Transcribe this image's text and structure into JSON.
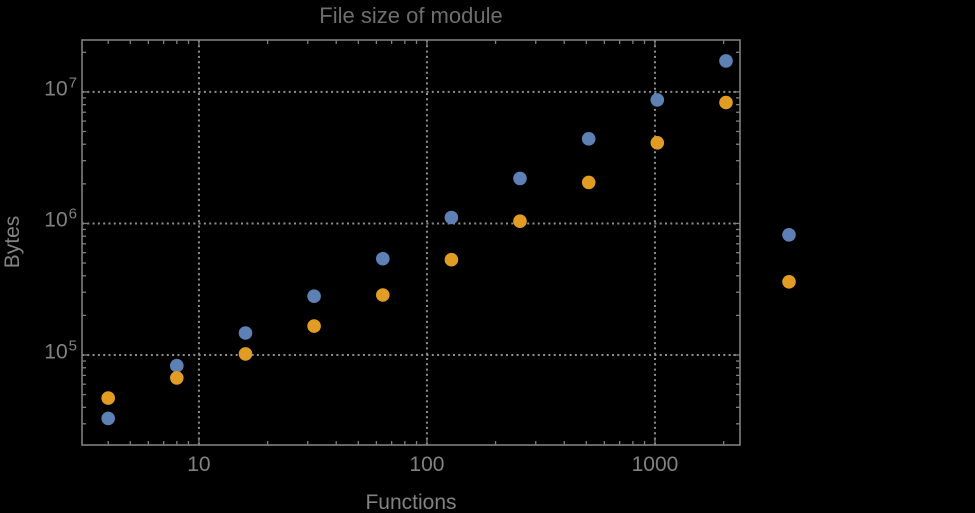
{
  "colors": {
    "background": "#000000",
    "frame": "#7f7f7f",
    "gridline": "#8f8f8f",
    "label_text": "#828282",
    "title_text": "#6e6e6e",
    "series_blue": "#5e81b5",
    "series_orange": "#e19c24"
  },
  "chart_data": {
    "type": "scatter",
    "title": "File size of module",
    "xlabel": "Functions",
    "ylabel": "Bytes",
    "xscale": "log",
    "yscale": "log",
    "xlim": [
      3.07,
      2360
    ],
    "ylim": [
      20700,
      24800000
    ],
    "grid": "dotted at decade lines",
    "legend": "none",
    "plot_range_clipping": false,
    "marker": "filled circle, diameter ~13.5px",
    "x_ticks": [
      {
        "value": 10,
        "label": "10"
      },
      {
        "value": 100,
        "label": "100"
      },
      {
        "value": 1000,
        "label": "1000"
      }
    ],
    "y_ticks": [
      {
        "value": 100000,
        "base": "10",
        "exp": "5"
      },
      {
        "value": 1000000,
        "base": "10",
        "exp": "6"
      },
      {
        "value": 10000000,
        "base": "10",
        "exp": "7"
      }
    ],
    "series": [
      {
        "name": "blue",
        "color": "#5e81b5",
        "points": [
          [
            4,
            33000
          ],
          [
            8,
            83000
          ],
          [
            16,
            147000
          ],
          [
            32,
            280000
          ],
          [
            64,
            540000
          ],
          [
            128,
            1110000
          ],
          [
            256,
            2200000
          ],
          [
            512,
            4400000
          ],
          [
            1024,
            8700000
          ],
          [
            2048,
            17200000
          ],
          [
            3870,
            820000
          ]
        ]
      },
      {
        "name": "orange",
        "color": "#e19c24",
        "points": [
          [
            4,
            47000
          ],
          [
            8,
            67000
          ],
          [
            16,
            102000
          ],
          [
            32,
            166000
          ],
          [
            64,
            286000
          ],
          [
            128,
            530000
          ],
          [
            256,
            1040000
          ],
          [
            512,
            2050000
          ],
          [
            1024,
            4100000
          ],
          [
            2048,
            8300000
          ],
          [
            3870,
            360000
          ]
        ]
      }
    ]
  }
}
